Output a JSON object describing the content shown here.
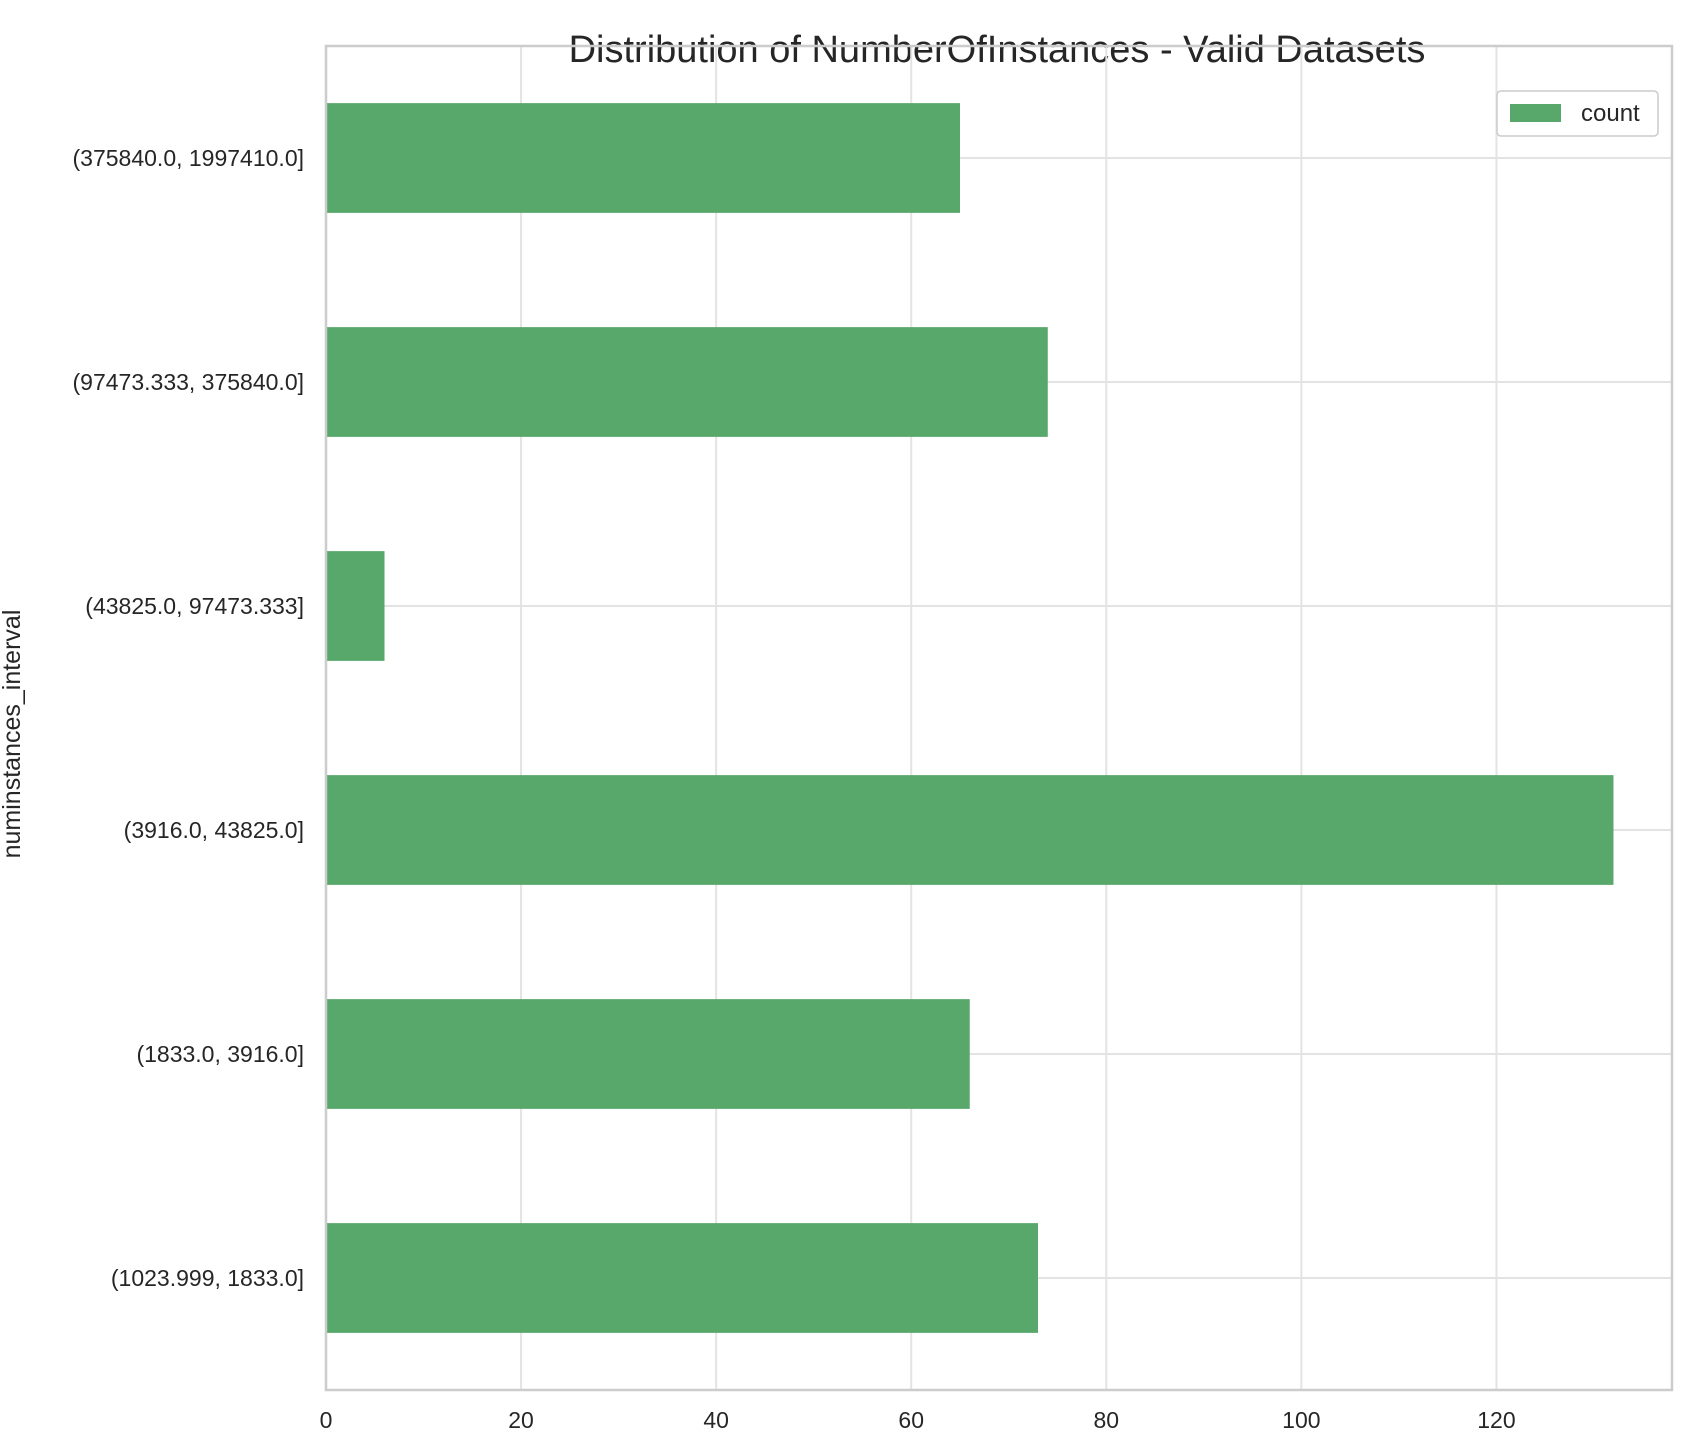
{
  "chart_data": {
    "type": "bar",
    "orientation": "horizontal",
    "title": "Distribution of NumberOfInstances - Valid Datasets",
    "xlabel": "",
    "ylabel": "numinstances_interval",
    "categories": [
      "(1023.999, 1833.0]",
      "(1833.0, 3916.0]",
      "(3916.0, 43825.0]",
      "(43825.0, 97473.333]",
      "(97473.333, 375840.0]",
      "(375840.0, 1997410.0]"
    ],
    "series": [
      {
        "name": "count",
        "values": [
          73,
          66,
          132,
          6,
          74,
          65
        ],
        "color": "#59a86b"
      }
    ],
    "xlim": [
      0,
      138
    ],
    "xticks": [
      0,
      20,
      40,
      60,
      80,
      100,
      120
    ],
    "grid": true,
    "legend_position": "top-right"
  }
}
